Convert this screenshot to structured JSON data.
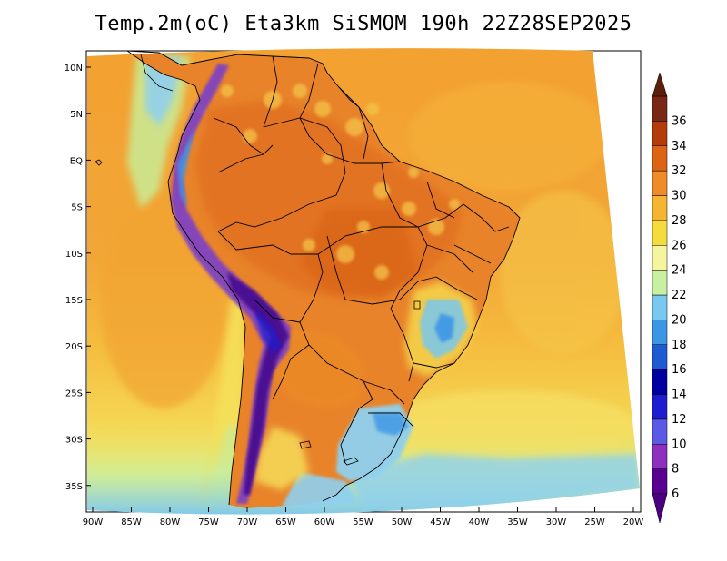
{
  "title": "Temp.2m(oC) Eta3km SiSMOM 190h 22Z28SEP2025",
  "map": {
    "lat_labels": [
      "10N",
      "5N",
      "EQ",
      "5S",
      "10S",
      "15S",
      "20S",
      "25S",
      "30S",
      "35S"
    ],
    "lon_labels": [
      "90W",
      "85W",
      "80W",
      "75W",
      "70W",
      "65W",
      "60W",
      "55W",
      "50W",
      "45W",
      "40W",
      "35W",
      "30W",
      "25W",
      "20W"
    ],
    "domain": {
      "lon_range": [
        -90.5,
        -19.5
      ],
      "lat_range": [
        -38,
        12
      ]
    },
    "variable": "2 m air temperature",
    "units": "oC"
  },
  "colorbar": {
    "labels": [
      "6",
      "8",
      "10",
      "12",
      "14",
      "16",
      "18",
      "20",
      "22",
      "24",
      "26",
      "28",
      "30",
      "32",
      "34",
      "36"
    ],
    "colors": [
      "#5a0090",
      "#8e2fbf",
      "#5a5ae6",
      "#1c1cd0",
      "#0000a0",
      "#1e5ad2",
      "#3c96e6",
      "#78c8f0",
      "#c8f0a0",
      "#f5f5a0",
      "#f5dc3c",
      "#f5b432",
      "#f08c28",
      "#dc6414",
      "#b43c0a",
      "#782814"
    ]
  },
  "colors": {
    "ocean_north": "#f3a131",
    "ocean_mid": "#f5b63a",
    "ocean_south": "#f5dc58",
    "coast_cool": "#8fd0ef",
    "land_hot": "#e6781e",
    "andes": "#5a1a9a",
    "borders": "#000000"
  }
}
